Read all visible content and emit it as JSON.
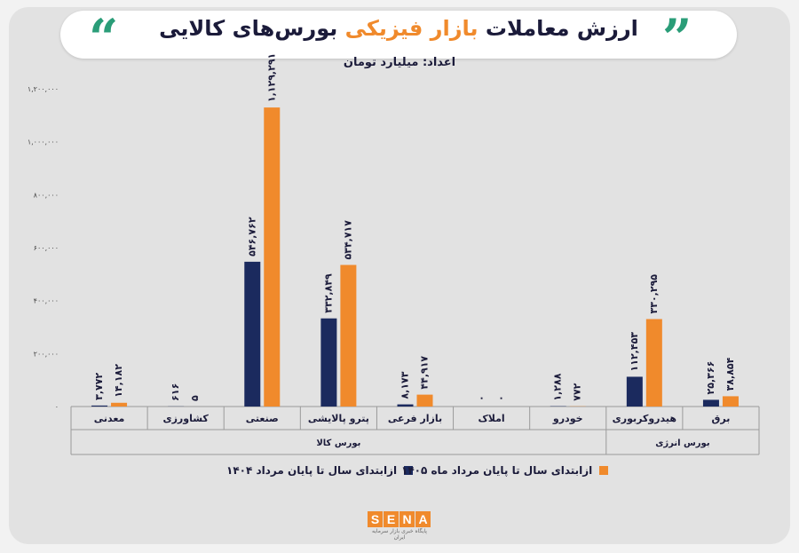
{
  "header": {
    "title_part1": "ارزش معاملات",
    "title_highlight": "بازار فیزیکی",
    "title_part2": "بورس‌های کالایی",
    "subtitle": "اعداد: میلیارد تومان"
  },
  "colors": {
    "series1": "#1b2a5e",
    "series2": "#f08a2c",
    "accent_quote": "#2a9d78",
    "title": "#1b1b3a"
  },
  "chart_data": {
    "type": "bar",
    "ylim": [
      0,
      1200000
    ],
    "yticks": [
      0,
      200000,
      400000,
      600000,
      800000,
      1000000,
      1200000
    ],
    "ytick_labels": [
      "۰",
      "۲۰۰,۰۰۰",
      "۴۰۰,۰۰۰",
      "۶۰۰,۰۰۰",
      "۸۰۰,۰۰۰",
      "۱,۰۰۰,۰۰۰",
      "۱,۲۰۰,۰۰۰"
    ],
    "categories": [
      "معدنی",
      "کشاورزی",
      "صنعتی",
      "پترو پالایشی",
      "بازار فرعی",
      "املاک",
      "خودرو",
      "هیدروکربوری",
      "برق"
    ],
    "groups": [
      {
        "label": "بورس کالا",
        "categories": [
          "معدنی",
          "کشاورزی",
          "صنعتی",
          "پترو پالایشی",
          "بازار فرعی",
          "املاک",
          "خودرو"
        ]
      },
      {
        "label": "بورس انرژی",
        "categories": [
          "هیدروکربوری",
          "برق"
        ]
      }
    ],
    "series": [
      {
        "name": "ازابتدای سال تا پایان مرداد ۱۴۰۴",
        "values": [
          3772,
          616,
          546762,
          332849,
          8173,
          0,
          1288,
          112453,
          25366
        ],
        "labels": [
          "۳,۷۷۲",
          "۶۱۶",
          "۵۴۶,۷۶۲",
          "۳۳۲,۸۴۹",
          "۸,۱۷۳",
          "۰",
          "۱,۲۸۸",
          "۱۱۲,۴۵۳",
          "۲۵,۳۶۶"
        ]
      },
      {
        "name": "ازابتدای سال تا پایان مرداد ماه ۱۴۰۵",
        "values": [
          14182,
          5,
          1129291,
          534717,
          44917,
          0,
          772,
          330295,
          38854
        ],
        "labels": [
          "۱۴,۱۸۲",
          "۵",
          "۱,۱۲۹,۲۹۱",
          "۵۳۴,۷۱۷",
          "۴۴,۹۱۷",
          "۰",
          "۷۷۲",
          "۳۳۰,۲۹۵",
          "۳۸,۸۵۴"
        ]
      }
    ]
  },
  "logo": {
    "text": "SENA",
    "subtext": "پایگاه خبری بازار سرمایه ایران"
  }
}
